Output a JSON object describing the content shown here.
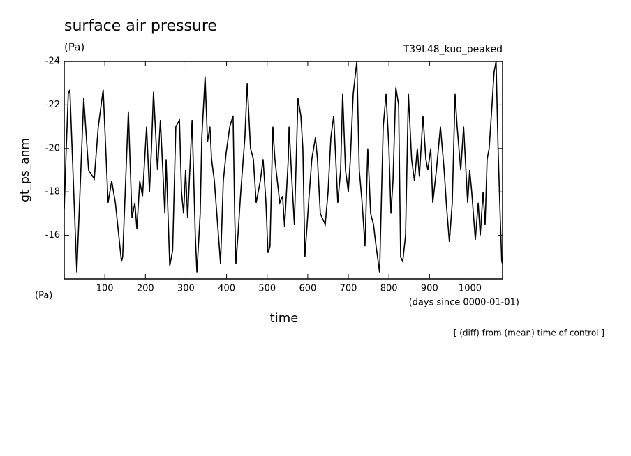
{
  "chart_data": {
    "type": "line",
    "title": "surface air pressure",
    "units": "(Pa)",
    "subtitle": "T39L48_kuo_peaked",
    "y_label": "gt_ps_anm",
    "y_units": "(Pa)",
    "x_label": "time",
    "x_units": "(days since 0000-01-01)",
    "annotation": "[ (diff) from (mean) time of control ]",
    "xlim": [
      0,
      1080
    ],
    "ylim": [
      -14,
      -24
    ],
    "xticks": [
      100,
      200,
      300,
      400,
      500,
      600,
      700,
      800,
      900,
      1000
    ],
    "yticks": [
      -24,
      -22,
      -20,
      -18,
      -16
    ],
    "series": [
      {
        "name": "gt_ps_anm",
        "color": "#000000",
        "x": [
          0,
          5,
          10,
          14,
          31,
          48,
          60,
          74,
          84,
          96,
          108,
          117,
          126,
          141,
          144,
          158,
          167,
          174,
          179,
          186,
          193,
          203,
          210,
          215,
          220,
          230,
          237,
          248,
          251,
          260,
          267,
          275,
          284,
          289,
          294,
          299,
          304,
          315,
          323,
          327,
          335,
          339,
          344,
          347,
          353,
          359,
          363,
          370,
          382,
          385,
          392,
          399,
          408,
          416,
          420,
          423,
          428,
          435,
          445,
          451,
          459,
          466,
          473,
          483,
          490,
          497,
          502,
          507,
          514,
          519,
          531,
          538,
          543,
          552,
          554,
          561,
          567,
          576,
          583,
          588,
          593,
          602,
          610,
          619,
          624,
          631,
          643,
          650,
          657,
          664,
          674,
          681,
          686,
          693,
          700,
          705,
          712,
          721,
          727,
          734,
          741,
          748,
          755,
          762,
          767,
          777,
          786,
          793,
          800,
          805,
          810,
          817,
          824,
          829,
          834,
          841,
          848,
          856,
          863,
          870,
          875,
          884,
          891,
          896,
          903,
          908,
          917,
          927,
          936,
          942,
          949,
          956,
          963,
          968,
          977,
          984,
          994,
          999,
          1004,
          1013,
          1020,
          1025,
          1032,
          1037,
          1042,
          1047,
          1054,
          1059,
          1064,
          1069,
          1074,
          1078,
          1080
        ],
        "values": [
          -17.2,
          -20,
          -22.5,
          -22.7,
          -14.3,
          -22.3,
          -19,
          -18.6,
          -21,
          -22.7,
          -17.5,
          -18.5,
          -17.5,
          -14.8,
          -15,
          -21.7,
          -16.8,
          -17.5,
          -16.3,
          -18.5,
          -17.8,
          -21,
          -18,
          -20,
          -22.6,
          -19,
          -21.3,
          -17,
          -19.5,
          -14.6,
          -15.3,
          -21,
          -21.3,
          -18,
          -17,
          -19,
          -16.8,
          -21.3,
          -16,
          -14.3,
          -17,
          -20.5,
          -22.2,
          -23.3,
          -20.3,
          -21,
          -19.5,
          -18.5,
          -15.5,
          -14.7,
          -18.5,
          -19.8,
          -21,
          -21.5,
          -17,
          -14.7,
          -16,
          -18,
          -20.5,
          -23,
          -20,
          -19.5,
          -17.5,
          -18.5,
          -19.5,
          -17.5,
          -15.2,
          -15.5,
          -21,
          -19.5,
          -17.5,
          -17.8,
          -16.4,
          -19.5,
          -21,
          -18.5,
          -16.5,
          -22.3,
          -21.5,
          -20,
          -15,
          -17.5,
          -19.5,
          -20.5,
          -19.5,
          -17,
          -16.5,
          -18,
          -20.5,
          -21.5,
          -17.5,
          -19,
          -22.5,
          -19,
          -18,
          -19.5,
          -22.5,
          -24,
          -19,
          -17.5,
          -15.5,
          -20,
          -17,
          -16.5,
          -15.7,
          -14.3,
          -21,
          -22.5,
          -20,
          -17,
          -18.5,
          -22.8,
          -22,
          -15,
          -14.8,
          -16,
          -22.5,
          -19.5,
          -18.5,
          -20,
          -18.7,
          -21.5,
          -19.5,
          -19,
          -20,
          -17.5,
          -19,
          -21,
          -19,
          -17.3,
          -15.7,
          -17.5,
          -22.5,
          -21,
          -19,
          -21,
          -17.5,
          -19,
          -18,
          -15.8,
          -17.5,
          -16,
          -18,
          -16.5,
          -19.5,
          -20,
          -22,
          -23.5,
          -24,
          -20,
          -17,
          -14.8,
          -14.7
        ]
      }
    ]
  }
}
